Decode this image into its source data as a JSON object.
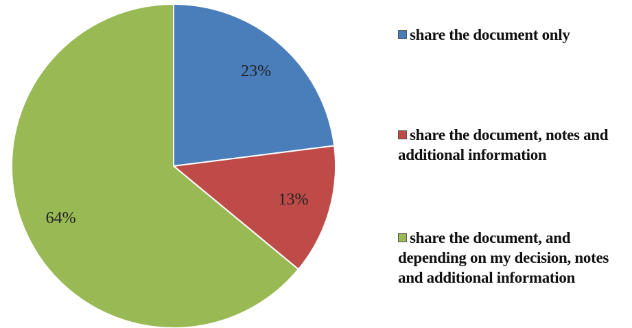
{
  "chart_data": {
    "type": "pie",
    "categories": [
      "share the document only",
      "share the document, notes and additional information",
      "share the document, and depending on my decision, notes and additional information"
    ],
    "values": [
      23,
      13,
      64
    ],
    "value_labels": [
      "23%",
      "13%",
      "64%"
    ],
    "colors": [
      "#4a7ebb",
      "#be4b48",
      "#98b954"
    ],
    "legend": "right"
  }
}
